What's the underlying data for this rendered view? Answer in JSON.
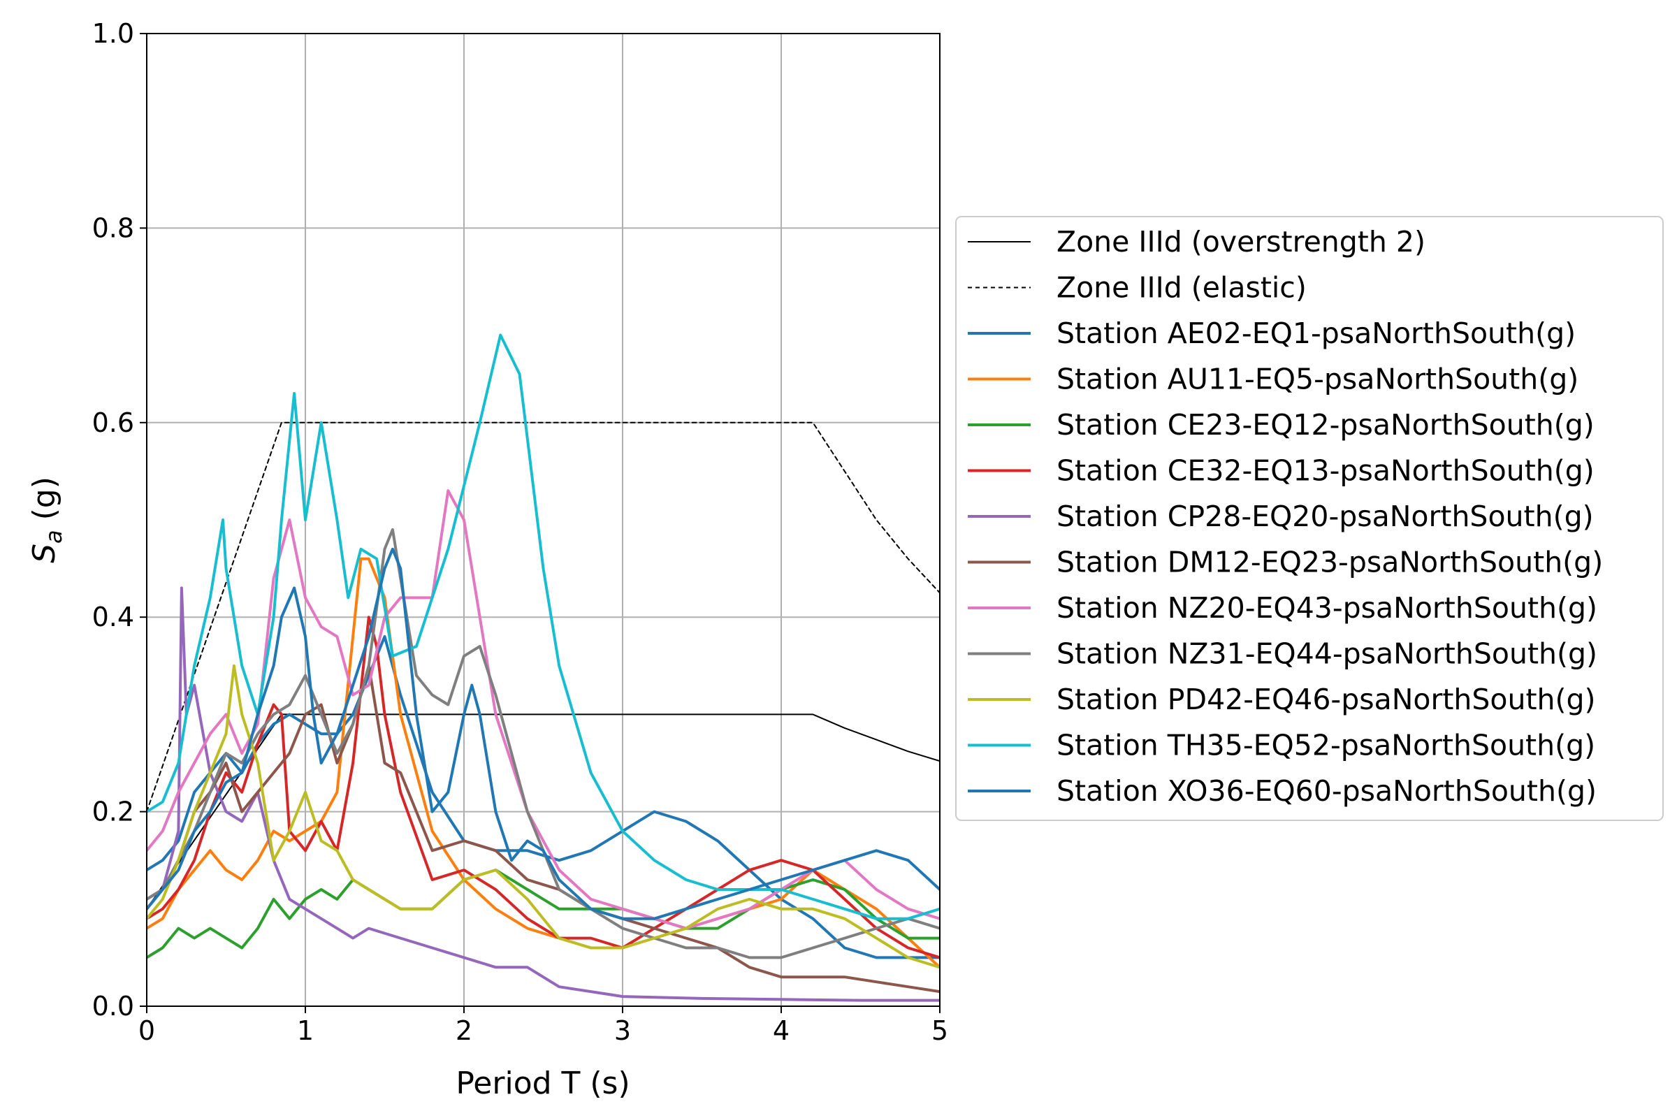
{
  "chart_data": {
    "type": "line",
    "title": "",
    "xlabel": "Period T (s)",
    "ylabel_main": "S",
    "ylabel_sub": "a",
    "ylabel_unit": " (g)",
    "xlim": [
      0,
      5
    ],
    "ylim": [
      0,
      1.0
    ],
    "x_ticks": [
      0,
      1,
      2,
      3,
      4,
      5
    ],
    "x_tick_labels": [
      "0",
      "1",
      "2",
      "3",
      "4",
      "5"
    ],
    "y_ticks": [
      0,
      0.2,
      0.4,
      0.6,
      0.8,
      1.0
    ],
    "y_tick_labels": [
      "0.0",
      "0.2",
      "0.4",
      "0.6",
      "0.8",
      "1.0"
    ],
    "grid": true,
    "legend_position": "outside-right",
    "series": [
      {
        "name": "Zone IIId (overstrength 2)",
        "color": "#000000",
        "style": "solid",
        "width": 1,
        "x": [
          0,
          0.85,
          4.2,
          4.4,
          4.6,
          4.8,
          5.0
        ],
        "y": [
          0.1,
          0.3,
          0.3,
          0.286,
          0.274,
          0.262,
          0.252
        ]
      },
      {
        "name": "Zone IIId (elastic)",
        "color": "#000000",
        "style": "dashed",
        "width": 1,
        "x": [
          0,
          0.85,
          4.2,
          4.4,
          4.6,
          4.8,
          5.0
        ],
        "y": [
          0.2,
          0.6,
          0.6,
          0.55,
          0.5,
          0.46,
          0.425
        ]
      },
      {
        "name": "Station AE02-EQ1-psaNorthSouth(g)",
        "color": "#1f77b4",
        "style": "solid",
        "width": 2,
        "x": [
          0,
          0.1,
          0.2,
          0.3,
          0.4,
          0.5,
          0.6,
          0.7,
          0.8,
          0.9,
          1.0,
          1.1,
          1.2,
          1.3,
          1.4,
          1.5,
          1.6,
          1.8,
          2.0,
          2.2,
          2.4,
          2.6,
          2.8,
          3.0,
          3.2,
          3.4,
          3.6,
          3.8,
          4.0,
          4.2,
          4.4,
          4.6,
          4.8,
          5.0
        ],
        "y": [
          0.14,
          0.15,
          0.17,
          0.22,
          0.24,
          0.26,
          0.24,
          0.27,
          0.29,
          0.3,
          0.29,
          0.28,
          0.28,
          0.3,
          0.34,
          0.38,
          0.32,
          0.22,
          0.17,
          0.16,
          0.16,
          0.15,
          0.16,
          0.18,
          0.2,
          0.19,
          0.17,
          0.14,
          0.11,
          0.09,
          0.06,
          0.05,
          0.05,
          0.05
        ]
      },
      {
        "name": "Station AU11-EQ5-psaNorthSouth(g)",
        "color": "#ff7f0e",
        "style": "solid",
        "width": 2,
        "x": [
          0,
          0.1,
          0.2,
          0.3,
          0.4,
          0.5,
          0.6,
          0.7,
          0.8,
          0.9,
          1.0,
          1.1,
          1.2,
          1.3,
          1.35,
          1.4,
          1.5,
          1.6,
          1.8,
          2.0,
          2.2,
          2.4,
          2.6,
          2.8,
          3.0,
          3.2,
          3.4,
          3.6,
          3.8,
          4.0,
          4.2,
          4.4,
          4.6,
          4.8,
          5.0
        ],
        "y": [
          0.08,
          0.09,
          0.12,
          0.14,
          0.16,
          0.14,
          0.13,
          0.15,
          0.18,
          0.17,
          0.18,
          0.19,
          0.22,
          0.38,
          0.46,
          0.46,
          0.42,
          0.3,
          0.18,
          0.13,
          0.1,
          0.08,
          0.07,
          0.06,
          0.06,
          0.07,
          0.08,
          0.09,
          0.1,
          0.11,
          0.14,
          0.12,
          0.1,
          0.07,
          0.04
        ]
      },
      {
        "name": "Station CE23-EQ12-psaNorthSouth(g)",
        "color": "#2ca02c",
        "style": "solid",
        "width": 2,
        "x": [
          0,
          0.1,
          0.2,
          0.3,
          0.4,
          0.5,
          0.6,
          0.7,
          0.8,
          0.9,
          1.0,
          1.1,
          1.2,
          1.3,
          1.4,
          1.6,
          1.8,
          2.0,
          2.2,
          2.4,
          2.6,
          2.8,
          3.0,
          3.2,
          3.4,
          3.6,
          3.8,
          4.0,
          4.2,
          4.4,
          4.6,
          4.8,
          5.0
        ],
        "y": [
          0.05,
          0.06,
          0.08,
          0.07,
          0.08,
          0.07,
          0.06,
          0.08,
          0.11,
          0.09,
          0.11,
          0.12,
          0.11,
          0.13,
          0.12,
          0.1,
          0.1,
          0.13,
          0.14,
          0.12,
          0.1,
          0.1,
          0.1,
          0.09,
          0.08,
          0.08,
          0.1,
          0.12,
          0.13,
          0.12,
          0.09,
          0.07,
          0.07
        ]
      },
      {
        "name": "Station CE32-EQ13-psaNorthSouth(g)",
        "color": "#d62728",
        "style": "solid",
        "width": 2,
        "x": [
          0,
          0.1,
          0.2,
          0.3,
          0.4,
          0.5,
          0.6,
          0.7,
          0.8,
          0.85,
          0.9,
          1.0,
          1.1,
          1.2,
          1.3,
          1.4,
          1.45,
          1.5,
          1.6,
          1.8,
          2.0,
          2.2,
          2.4,
          2.6,
          2.8,
          3.0,
          3.2,
          3.4,
          3.6,
          3.8,
          4.0,
          4.2,
          4.4,
          4.6,
          4.8,
          5.0
        ],
        "y": [
          0.09,
          0.1,
          0.12,
          0.15,
          0.2,
          0.24,
          0.22,
          0.27,
          0.31,
          0.3,
          0.18,
          0.16,
          0.19,
          0.16,
          0.25,
          0.4,
          0.37,
          0.3,
          0.22,
          0.13,
          0.14,
          0.12,
          0.09,
          0.07,
          0.07,
          0.06,
          0.08,
          0.1,
          0.12,
          0.14,
          0.15,
          0.14,
          0.11,
          0.08,
          0.06,
          0.05
        ]
      },
      {
        "name": "Station CP28-EQ20-psaNorthSouth(g)",
        "color": "#9467bd",
        "style": "solid",
        "width": 2,
        "x": [
          0,
          0.1,
          0.2,
          0.22,
          0.25,
          0.3,
          0.4,
          0.5,
          0.6,
          0.7,
          0.8,
          0.9,
          1.0,
          1.1,
          1.2,
          1.3,
          1.4,
          1.6,
          1.8,
          2.0,
          2.2,
          2.4,
          2.6,
          2.8,
          3.0,
          3.5,
          4.0,
          4.5,
          5.0
        ],
        "y": [
          0.11,
          0.12,
          0.18,
          0.43,
          0.3,
          0.33,
          0.24,
          0.2,
          0.19,
          0.22,
          0.15,
          0.11,
          0.1,
          0.09,
          0.08,
          0.07,
          0.08,
          0.07,
          0.06,
          0.05,
          0.04,
          0.04,
          0.02,
          0.015,
          0.01,
          0.008,
          0.007,
          0.006,
          0.006
        ]
      },
      {
        "name": "Station DM12-EQ23-psaNorthSouth(g)",
        "color": "#8c564b",
        "style": "solid",
        "width": 2,
        "x": [
          0,
          0.1,
          0.2,
          0.3,
          0.4,
          0.5,
          0.6,
          0.7,
          0.8,
          0.9,
          1.0,
          1.1,
          1.2,
          1.3,
          1.4,
          1.5,
          1.6,
          1.7,
          1.8,
          2.0,
          2.2,
          2.4,
          2.6,
          2.8,
          3.0,
          3.2,
          3.4,
          3.6,
          3.8,
          4.0,
          4.2,
          4.4,
          4.6,
          4.8,
          5.0
        ],
        "y": [
          0.1,
          0.12,
          0.15,
          0.2,
          0.22,
          0.25,
          0.2,
          0.22,
          0.24,
          0.26,
          0.3,
          0.31,
          0.25,
          0.29,
          0.35,
          0.25,
          0.24,
          0.2,
          0.16,
          0.17,
          0.16,
          0.13,
          0.12,
          0.1,
          0.09,
          0.08,
          0.07,
          0.06,
          0.04,
          0.03,
          0.03,
          0.03,
          0.025,
          0.02,
          0.015
        ]
      },
      {
        "name": "Station NZ20-EQ43-psaNorthSouth(g)",
        "color": "#e377c2",
        "style": "solid",
        "width": 2,
        "x": [
          0,
          0.1,
          0.2,
          0.3,
          0.4,
          0.5,
          0.6,
          0.7,
          0.8,
          0.9,
          1.0,
          1.1,
          1.2,
          1.3,
          1.4,
          1.5,
          1.6,
          1.8,
          1.9,
          2.0,
          2.1,
          2.2,
          2.4,
          2.6,
          2.8,
          3.0,
          3.2,
          3.4,
          3.6,
          3.8,
          4.0,
          4.2,
          4.4,
          4.6,
          4.8,
          5.0
        ],
        "y": [
          0.16,
          0.18,
          0.22,
          0.25,
          0.28,
          0.3,
          0.26,
          0.29,
          0.44,
          0.5,
          0.42,
          0.39,
          0.38,
          0.32,
          0.33,
          0.4,
          0.42,
          0.42,
          0.53,
          0.5,
          0.4,
          0.3,
          0.2,
          0.14,
          0.11,
          0.1,
          0.09,
          0.08,
          0.09,
          0.1,
          0.12,
          0.14,
          0.15,
          0.12,
          0.1,
          0.09
        ]
      },
      {
        "name": "Station NZ31-EQ44-psaNorthSouth(g)",
        "color": "#7f7f7f",
        "style": "solid",
        "width": 2,
        "x": [
          0,
          0.1,
          0.2,
          0.3,
          0.4,
          0.5,
          0.6,
          0.7,
          0.8,
          0.9,
          1.0,
          1.1,
          1.2,
          1.3,
          1.4,
          1.5,
          1.55,
          1.6,
          1.7,
          1.8,
          1.9,
          2.0,
          2.1,
          2.2,
          2.4,
          2.6,
          2.8,
          3.0,
          3.2,
          3.4,
          3.6,
          3.8,
          4.0,
          4.2,
          4.4,
          4.6,
          4.8,
          5.0
        ],
        "y": [
          0.11,
          0.12,
          0.15,
          0.18,
          0.22,
          0.26,
          0.25,
          0.28,
          0.3,
          0.31,
          0.34,
          0.3,
          0.26,
          0.29,
          0.35,
          0.47,
          0.49,
          0.44,
          0.34,
          0.32,
          0.31,
          0.36,
          0.37,
          0.32,
          0.2,
          0.12,
          0.1,
          0.08,
          0.07,
          0.06,
          0.06,
          0.05,
          0.05,
          0.06,
          0.07,
          0.08,
          0.09,
          0.08
        ]
      },
      {
        "name": "Station PD42-EQ46-psaNorthSouth(g)",
        "color": "#bcbd22",
        "style": "solid",
        "width": 2,
        "x": [
          0,
          0.1,
          0.2,
          0.3,
          0.4,
          0.5,
          0.55,
          0.6,
          0.7,
          0.8,
          0.9,
          1.0,
          1.1,
          1.2,
          1.3,
          1.4,
          1.6,
          1.8,
          2.0,
          2.2,
          2.4,
          2.6,
          2.8,
          3.0,
          3.2,
          3.4,
          3.6,
          3.8,
          4.0,
          4.2,
          4.4,
          4.6,
          4.8,
          5.0
        ],
        "y": [
          0.09,
          0.11,
          0.15,
          0.2,
          0.24,
          0.28,
          0.35,
          0.3,
          0.25,
          0.15,
          0.18,
          0.22,
          0.17,
          0.16,
          0.13,
          0.12,
          0.1,
          0.1,
          0.13,
          0.14,
          0.11,
          0.07,
          0.06,
          0.06,
          0.07,
          0.08,
          0.1,
          0.11,
          0.1,
          0.1,
          0.09,
          0.07,
          0.05,
          0.04
        ]
      },
      {
        "name": "Station TH35-EQ52-psaNorthSouth(g)",
        "color": "#17becf",
        "style": "solid",
        "width": 2,
        "x": [
          0,
          0.1,
          0.2,
          0.3,
          0.4,
          0.48,
          0.5,
          0.55,
          0.6,
          0.7,
          0.8,
          0.85,
          0.93,
          1.0,
          1.05,
          1.1,
          1.2,
          1.27,
          1.35,
          1.45,
          1.55,
          1.7,
          1.9,
          2.1,
          2.23,
          2.35,
          2.5,
          2.6,
          2.8,
          3.0,
          3.2,
          3.4,
          3.6,
          3.8,
          4.0,
          4.2,
          4.4,
          4.6,
          4.8,
          5.0
        ],
        "y": [
          0.2,
          0.21,
          0.25,
          0.35,
          0.42,
          0.5,
          0.45,
          0.4,
          0.35,
          0.3,
          0.4,
          0.5,
          0.63,
          0.5,
          0.55,
          0.6,
          0.5,
          0.42,
          0.47,
          0.46,
          0.36,
          0.37,
          0.47,
          0.6,
          0.69,
          0.65,
          0.45,
          0.35,
          0.24,
          0.18,
          0.15,
          0.13,
          0.12,
          0.12,
          0.12,
          0.11,
          0.1,
          0.09,
          0.09,
          0.1
        ]
      },
      {
        "name": "Station XO36-EQ60-psaNorthSouth(g)",
        "color": "#1f77b4",
        "style": "solid",
        "width": 2,
        "x": [
          0,
          0.1,
          0.2,
          0.3,
          0.4,
          0.5,
          0.6,
          0.7,
          0.8,
          0.85,
          0.93,
          1.0,
          1.05,
          1.1,
          1.2,
          1.3,
          1.4,
          1.5,
          1.55,
          1.6,
          1.7,
          1.8,
          1.9,
          2.0,
          2.05,
          2.1,
          2.2,
          2.3,
          2.4,
          2.5,
          2.6,
          2.8,
          3.0,
          3.2,
          3.4,
          3.6,
          3.8,
          4.0,
          4.2,
          4.4,
          4.6,
          4.8,
          5.0
        ],
        "y": [
          0.1,
          0.12,
          0.14,
          0.18,
          0.2,
          0.23,
          0.24,
          0.3,
          0.35,
          0.4,
          0.43,
          0.38,
          0.3,
          0.25,
          0.28,
          0.33,
          0.38,
          0.45,
          0.47,
          0.45,
          0.3,
          0.2,
          0.22,
          0.3,
          0.33,
          0.3,
          0.2,
          0.15,
          0.17,
          0.16,
          0.13,
          0.1,
          0.09,
          0.09,
          0.1,
          0.11,
          0.12,
          0.13,
          0.14,
          0.15,
          0.16,
          0.15,
          0.12
        ]
      }
    ]
  }
}
